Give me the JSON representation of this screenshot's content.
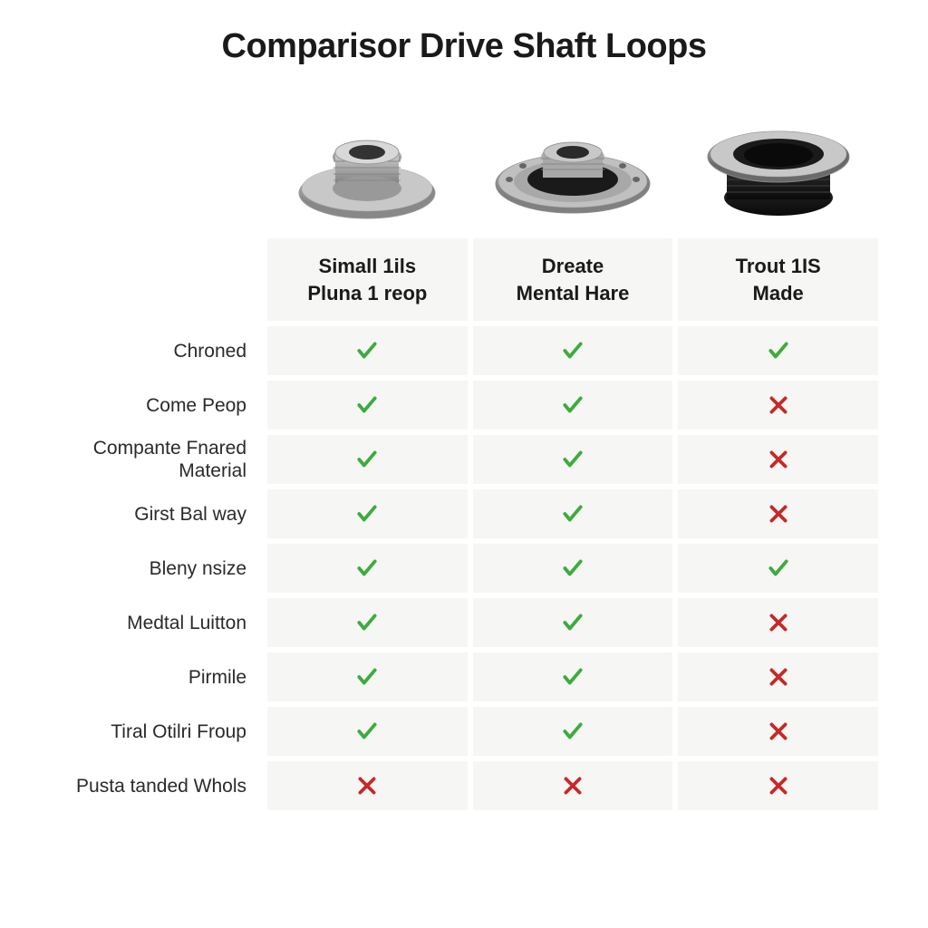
{
  "title": "Comparisor Drive Shaft Loops",
  "columns": [
    {
      "header_line1": "Simall 1ils",
      "header_line2": "Pluna 1 reop"
    },
    {
      "header_line1": "Dreate",
      "header_line2": "Mental Hare"
    },
    {
      "header_line1": "Trout 1IS",
      "header_line2": "Made"
    }
  ],
  "features": [
    {
      "label": "Chroned",
      "values": [
        "check",
        "check",
        "check"
      ]
    },
    {
      "label": "Come Peop",
      "values": [
        "check",
        "check",
        "cross"
      ]
    },
    {
      "label": "Compante Fnared Material",
      "values": [
        "check",
        "check",
        "cross"
      ]
    },
    {
      "label": "Girst Bal way",
      "values": [
        "check",
        "check",
        "cross"
      ]
    },
    {
      "label": "Bleny nsize",
      "values": [
        "check",
        "check",
        "check"
      ]
    },
    {
      "label": "Medtal Luitton",
      "values": [
        "check",
        "check",
        "cross"
      ]
    },
    {
      "label": "Pirmile",
      "values": [
        "check",
        "check",
        "cross"
      ]
    },
    {
      "label": "Tiral Otilri Froup",
      "values": [
        "check",
        "check",
        "cross"
      ]
    },
    {
      "label": "Pusta tanded Whols",
      "values": [
        "cross",
        "cross",
        "cross"
      ]
    }
  ],
  "colors": {
    "check": "#3dab3d",
    "cross": "#c62828",
    "cell_bg": "#f6f6f4",
    "text": "#1a1a1a",
    "background": "#ffffff"
  }
}
